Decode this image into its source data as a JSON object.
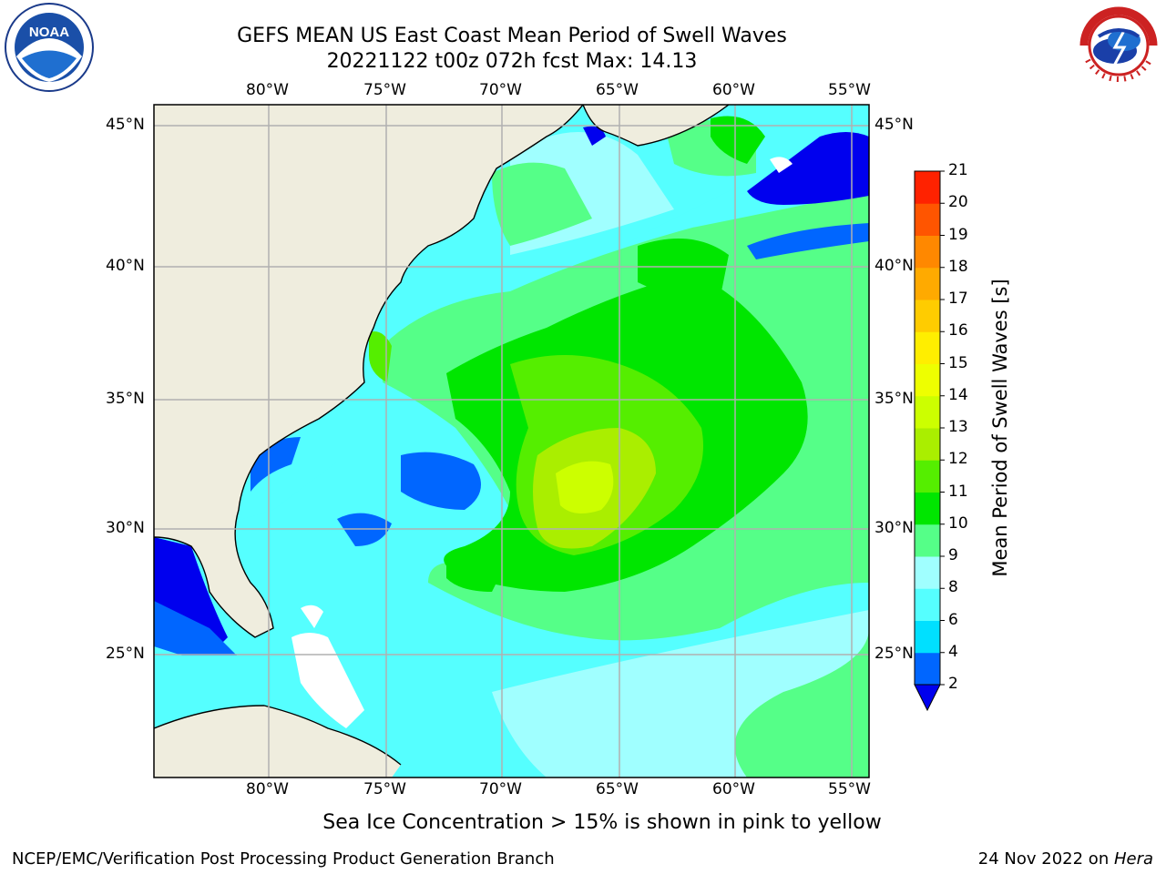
{
  "header": {
    "title_line1": "GEFS MEAN US East Coast Mean Period of Swell Waves",
    "title_line2": "20221122 t00z 072h fcst   Max: 14.13"
  },
  "logos": {
    "left": {
      "name": "noaa-logo",
      "text": "NOAA"
    },
    "right": {
      "name": "national-weather-service-logo",
      "text": "NATIONAL WEATHER SERVICE"
    }
  },
  "map": {
    "lon_labels": [
      "80°W",
      "75°W",
      "70°W",
      "65°W",
      "60°W",
      "55°W"
    ],
    "lat_labels": [
      "45°N",
      "40°N",
      "35°N",
      "30°N",
      "25°N"
    ],
    "lon_ticks": [
      -80,
      -75,
      -70,
      -65,
      -60,
      -55
    ],
    "lat_ticks": [
      45,
      40,
      35,
      30,
      25
    ],
    "extent": {
      "lon_min": -85,
      "lon_max": -54.5,
      "lat_min": 20.5,
      "lat_max": 46
    },
    "land_color": "#efedde",
    "grid_color": "#b0b0b0"
  },
  "colorbar": {
    "label": "Mean Period of Swell Waves [s]",
    "levels": [
      "2",
      "4",
      "6",
      "8",
      "9",
      "10",
      "11",
      "12",
      "13",
      "14",
      "15",
      "16",
      "17",
      "18",
      "19",
      "20",
      "21"
    ],
    "colors": [
      "#0066ff",
      "#00e0ff",
      "#55ffff",
      "#a0ffff",
      "#55ff88",
      "#00e600",
      "#55ee00",
      "#aaee00",
      "#ccff00",
      "#eeff00",
      "#ffee00",
      "#ffcc00",
      "#ffaa00",
      "#ff8800",
      "#ff5500",
      "#ff2200"
    ],
    "under_color": "#0000ee"
  },
  "subtitle": "Sea Ice Concentration > 15% is shown in pink to yellow",
  "footer": {
    "left": "NCEP/EMC/Verification Post Processing Product Generation Branch",
    "right_date": "24 Nov 2022 on ",
    "right_host": "Hera"
  }
}
